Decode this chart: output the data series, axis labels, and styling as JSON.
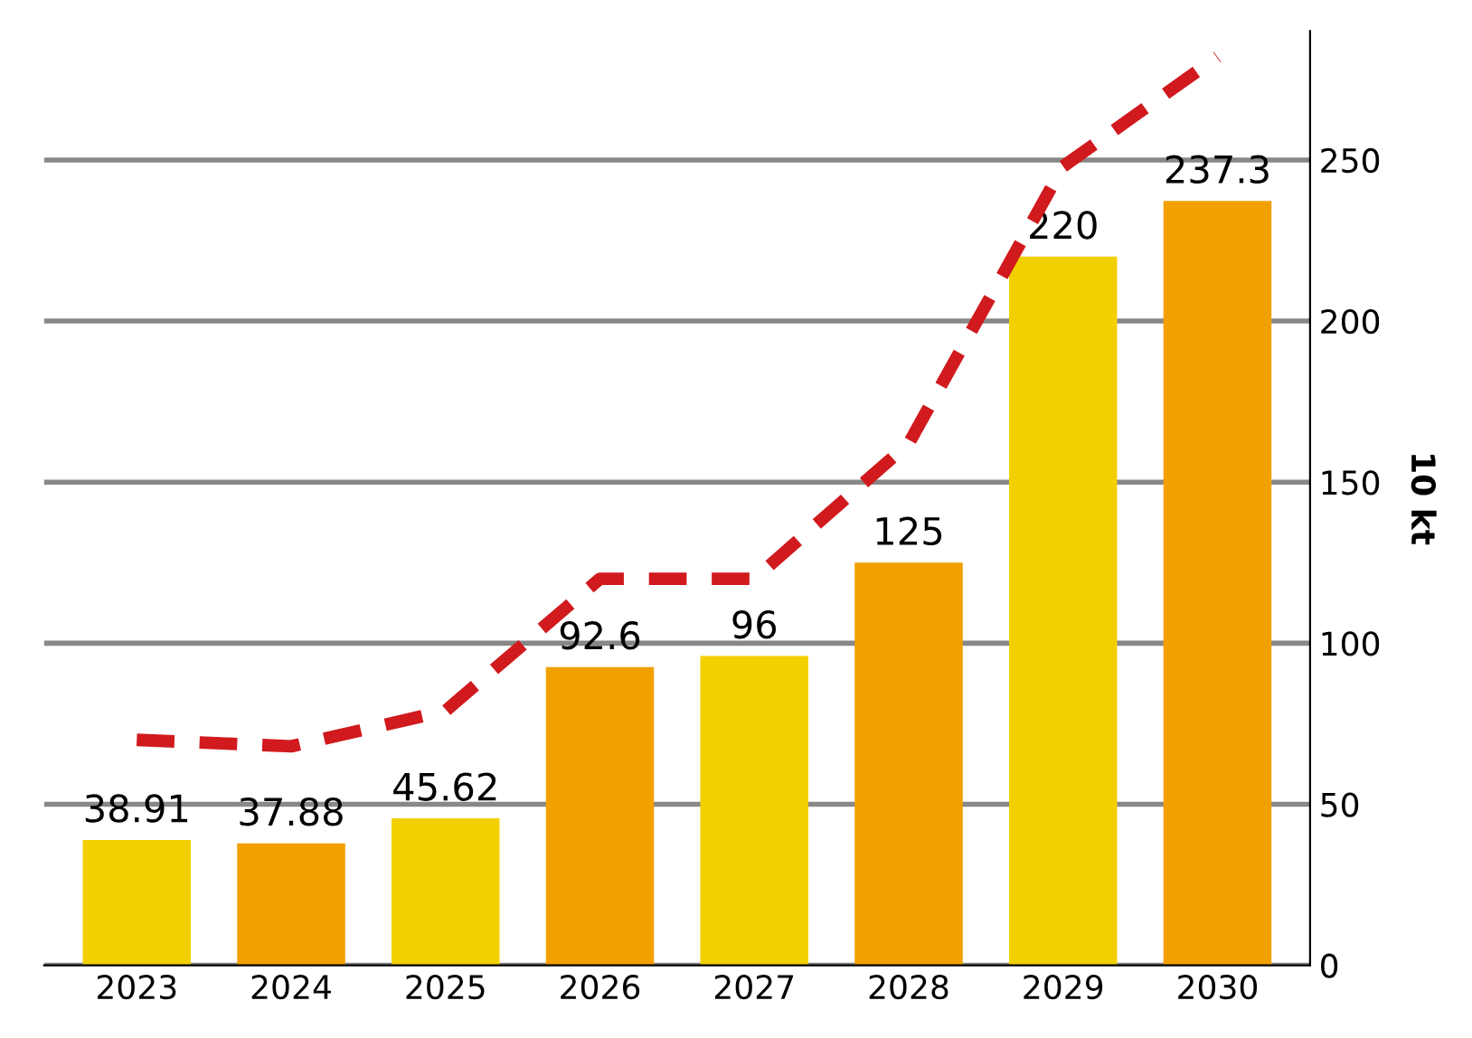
{
  "chart_data": {
    "type": "bar",
    "ylabel": "10 kt",
    "categories": [
      "2023",
      "2024",
      "2025",
      "2026",
      "2027",
      "2028",
      "2029",
      "2030"
    ],
    "series": [
      {
        "values": [
          38.91,
          37.88,
          45.62,
          92.6,
          96,
          125,
          220,
          237.3
        ],
        "colors": [
          "#f2d000",
          "#f2a000",
          "#f2d000",
          "#f2a000",
          "#f2d000",
          "#f2a000",
          "#f2d000",
          "#f2a000"
        ],
        "data_labels": true
      },
      {
        "type": "line",
        "color": "#d01a1e",
        "line_style": "dashed",
        "values": [
          70,
          68,
          79,
          120,
          120,
          162,
          248,
          282
        ]
      }
    ],
    "ylim": [
      0,
      290
    ],
    "yticks": [
      0,
      50,
      100,
      150,
      200,
      250
    ],
    "grid": "y",
    "legend": false
  }
}
